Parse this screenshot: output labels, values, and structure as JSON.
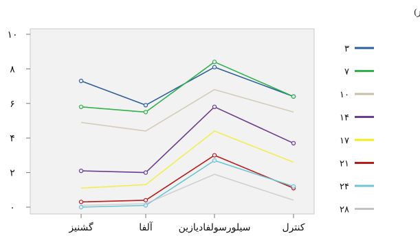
{
  "chart_data": {
    "type": "line",
    "categories": [
      "گشنیز",
      "آلفا",
      "سیلورسولفادیازین",
      "کنترل"
    ],
    "ylim": [
      0,
      10
    ],
    "yticks": [
      "۰",
      "۲",
      "۴",
      "۶",
      "۸",
      "۱۰"
    ],
    "legend_title": "مساحت زخم (روز)",
    "legend_position": "right",
    "grid": false,
    "series": [
      {
        "name": "۳",
        "color": "#2c5f9e",
        "values": [
          7.3,
          5.9,
          8.1,
          6.4
        ],
        "markers": true
      },
      {
        "name": "۷",
        "color": "#2fb24a",
        "values": [
          5.8,
          5.5,
          8.4,
          6.4
        ],
        "markers": true
      },
      {
        "name": "۱۰",
        "color": "#c9bfa6",
        "values": [
          4.9,
          4.4,
          6.8,
          5.5
        ],
        "markers": false
      },
      {
        "name": "۱۴",
        "color": "#6a3d8f",
        "values": [
          2.1,
          2.0,
          5.8,
          3.7
        ],
        "markers": true
      },
      {
        "name": "۱۷",
        "color": "#f2ec1c",
        "values": [
          1.1,
          1.3,
          4.4,
          2.6
        ],
        "markers": false
      },
      {
        "name": "۲۱",
        "color": "#b51c1c",
        "values": [
          0.3,
          0.4,
          3.0,
          1.1
        ],
        "markers": true
      },
      {
        "name": "۲۴",
        "color": "#6cc4d4",
        "values": [
          0.0,
          0.1,
          2.7,
          1.2
        ],
        "markers": true
      },
      {
        "name": "۲۸",
        "color": "#c4c4c4",
        "values": [
          0.1,
          0.2,
          1.9,
          0.4
        ],
        "markers": false
      }
    ]
  }
}
